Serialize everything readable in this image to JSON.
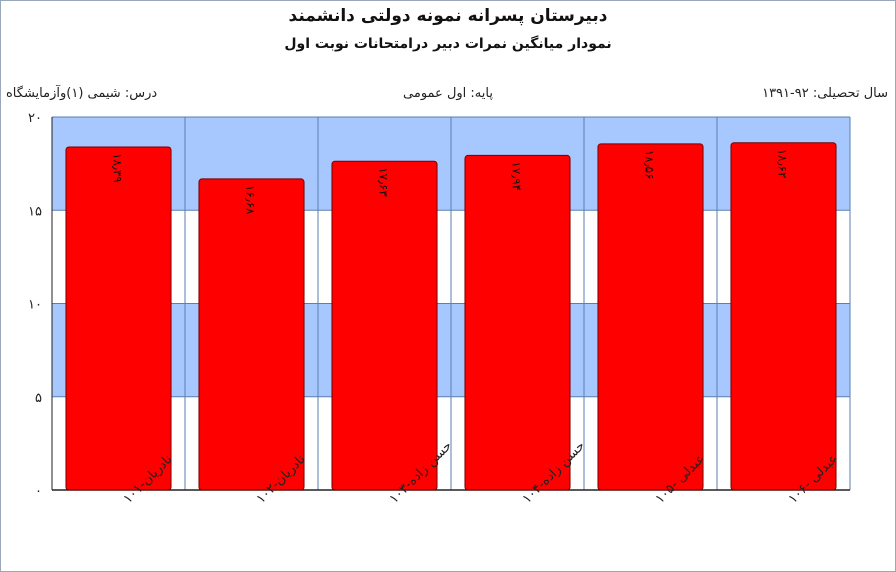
{
  "header": {
    "title": "دبیرستان پسرانه نمونه دولتی دانشمند",
    "subtitle": "نمودار میانگین نمرات دبیر درامتحانات نوبت اول"
  },
  "info": {
    "year": "سال تحصیلی: ۹۲-۱۳۹۱",
    "grade": "پایه: اول عمومی",
    "course": "درس: شیمی (۱)وآزمایشگاه"
  },
  "chart_data": {
    "type": "bar",
    "categories": [
      "نادریان-۱۰۱",
      "نادریان-۱۰۲",
      "حسن زاده-۱۰۳",
      "حسن زاده-۱۰۴",
      "عبدلی -۱۰۵",
      "عبدلی -۱۰۶"
    ],
    "values": [
      18.39,
      16.68,
      17.63,
      17.94,
      18.56,
      18.62
    ],
    "value_labels": [
      "۱۸٫۳۹",
      "۱۶٫۶۸",
      "۱۷٫۶۳",
      "۱۷٫۹۴",
      "۱۸٫۵۶",
      "۱۸٫۶۲"
    ],
    "yticks": [
      0,
      5,
      10,
      15,
      20
    ],
    "ytick_labels": [
      "۰",
      "۵",
      "۱۰",
      "۱۵",
      "۲۰"
    ],
    "ylim": [
      0,
      20
    ],
    "grid": true,
    "colors": {
      "bar": "#ff0000",
      "bar_border": "#7a0000",
      "band_blue": "#a6c8ff",
      "band_white": "#ffffff",
      "grid": "#5b7fb0"
    }
  }
}
